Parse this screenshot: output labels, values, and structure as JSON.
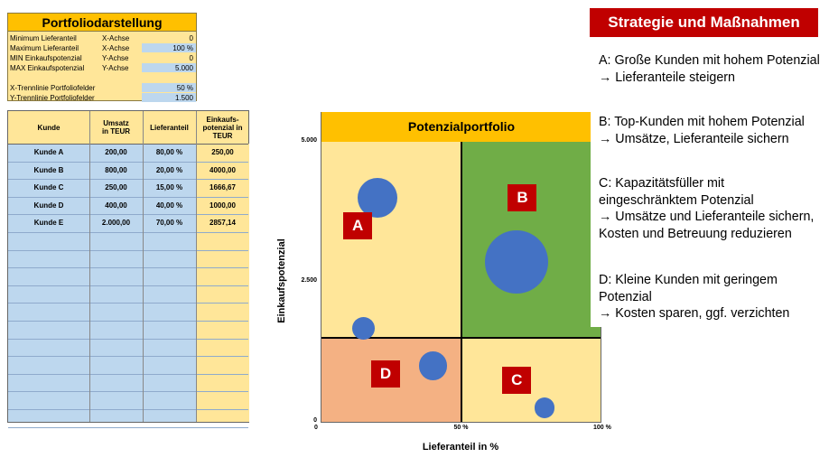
{
  "settings": {
    "title": "Portfoliodarstellung",
    "rows": [
      {
        "label": "Minimum Lieferanteil",
        "axis": "X-Achse",
        "value": "0",
        "highlight": false
      },
      {
        "label": "Maximum Lieferanteil",
        "axis": "X-Achse",
        "value": "100 %",
        "highlight": true
      },
      {
        "label": "MIN Einkaufspotenzial",
        "axis": "Y-Achse",
        "value": "0",
        "highlight": false
      },
      {
        "label": "MAX Einkaufspotenzial",
        "axis": "Y-Achse",
        "value": "5.000",
        "highlight": true
      },
      {
        "label": "",
        "axis": "",
        "value": "",
        "highlight": false
      },
      {
        "label": "X-Trennlinie Portfoliofelder",
        "axis": "",
        "value": "50 %",
        "highlight": true
      },
      {
        "label": "Y-Trennlinie Portfoliofelder",
        "axis": "",
        "value": "1.500",
        "highlight": true
      }
    ]
  },
  "table": {
    "headers": [
      "Kunde",
      "Umsatz\nin TEUR",
      "Lieferanteil",
      "Einkaufs-\npotenzial in\nTEUR"
    ],
    "rows": [
      [
        "Kunde A",
        "200,00",
        "80,00 %",
        "250,00"
      ],
      [
        "Kunde B",
        "800,00",
        "20,00 %",
        "4000,00"
      ],
      [
        "Kunde C",
        "250,00",
        "15,00 %",
        "1666,67"
      ],
      [
        "Kunde D",
        "400,00",
        "40,00 %",
        "1000,00"
      ],
      [
        "Kunde E",
        "2.000,00",
        "70,00 %",
        "2857,14"
      ]
    ],
    "empty_rows": 11
  },
  "chart_data": {
    "type": "scatter",
    "title": "Potenzialportfolio",
    "xlabel": "Lieferanteil in %",
    "ylabel": "Einkaufspotenzial",
    "xlim": [
      0,
      100
    ],
    "ylim": [
      0,
      5000
    ],
    "x_ticks": [
      "0",
      "50 %",
      "100 %"
    ],
    "y_ticks": [
      "0",
      "2.500",
      "5.000"
    ],
    "quadrant_split": {
      "x": 50,
      "y": 1500
    },
    "quadrant_colors": {
      "top_left": "#ffe699",
      "top_right": "#70ad47",
      "bottom_left": "#f4b183",
      "bottom_right": "#ffe699"
    },
    "quadrant_labels": [
      {
        "text": "A",
        "x": 13,
        "y": 3500
      },
      {
        "text": "B",
        "x": 72,
        "y": 4000
      },
      {
        "text": "C",
        "x": 70,
        "y": 750
      },
      {
        "text": "D",
        "x": 23,
        "y": 850
      }
    ],
    "series": [
      {
        "points": [
          {
            "x": 80,
            "y": 250,
            "size": 200
          },
          {
            "x": 20,
            "y": 4000,
            "size": 800
          },
          {
            "x": 15,
            "y": 1666.67,
            "size": 250
          },
          {
            "x": 40,
            "y": 1000,
            "size": 400
          },
          {
            "x": 70,
            "y": 2857.14,
            "size": 2000
          }
        ],
        "color": "#4472c4"
      }
    ]
  },
  "strategy": {
    "title": "Strategie und Maßnahmen",
    "blocks": [
      {
        "line1": "A: Große Kunden mit hohem Potenzial",
        "line2": "→ Lieferanteile steigern"
      },
      {
        "line1": "B: Top-Kunden mit hohem Potenzial",
        "line2": "→ Umsätze, Lieferanteile sichern"
      },
      {
        "line1": "C: Kapazitätsfüller mit eingeschränktem Potenzial",
        "line2": "→ Umsätze und Lieferanteile sichern, Kosten und Betreuung reduzieren"
      },
      {
        "line1": "D: Kleine Kunden mit geringem Potenzial",
        "line2": "→ Kosten sparen, ggf. verzichten"
      }
    ]
  }
}
